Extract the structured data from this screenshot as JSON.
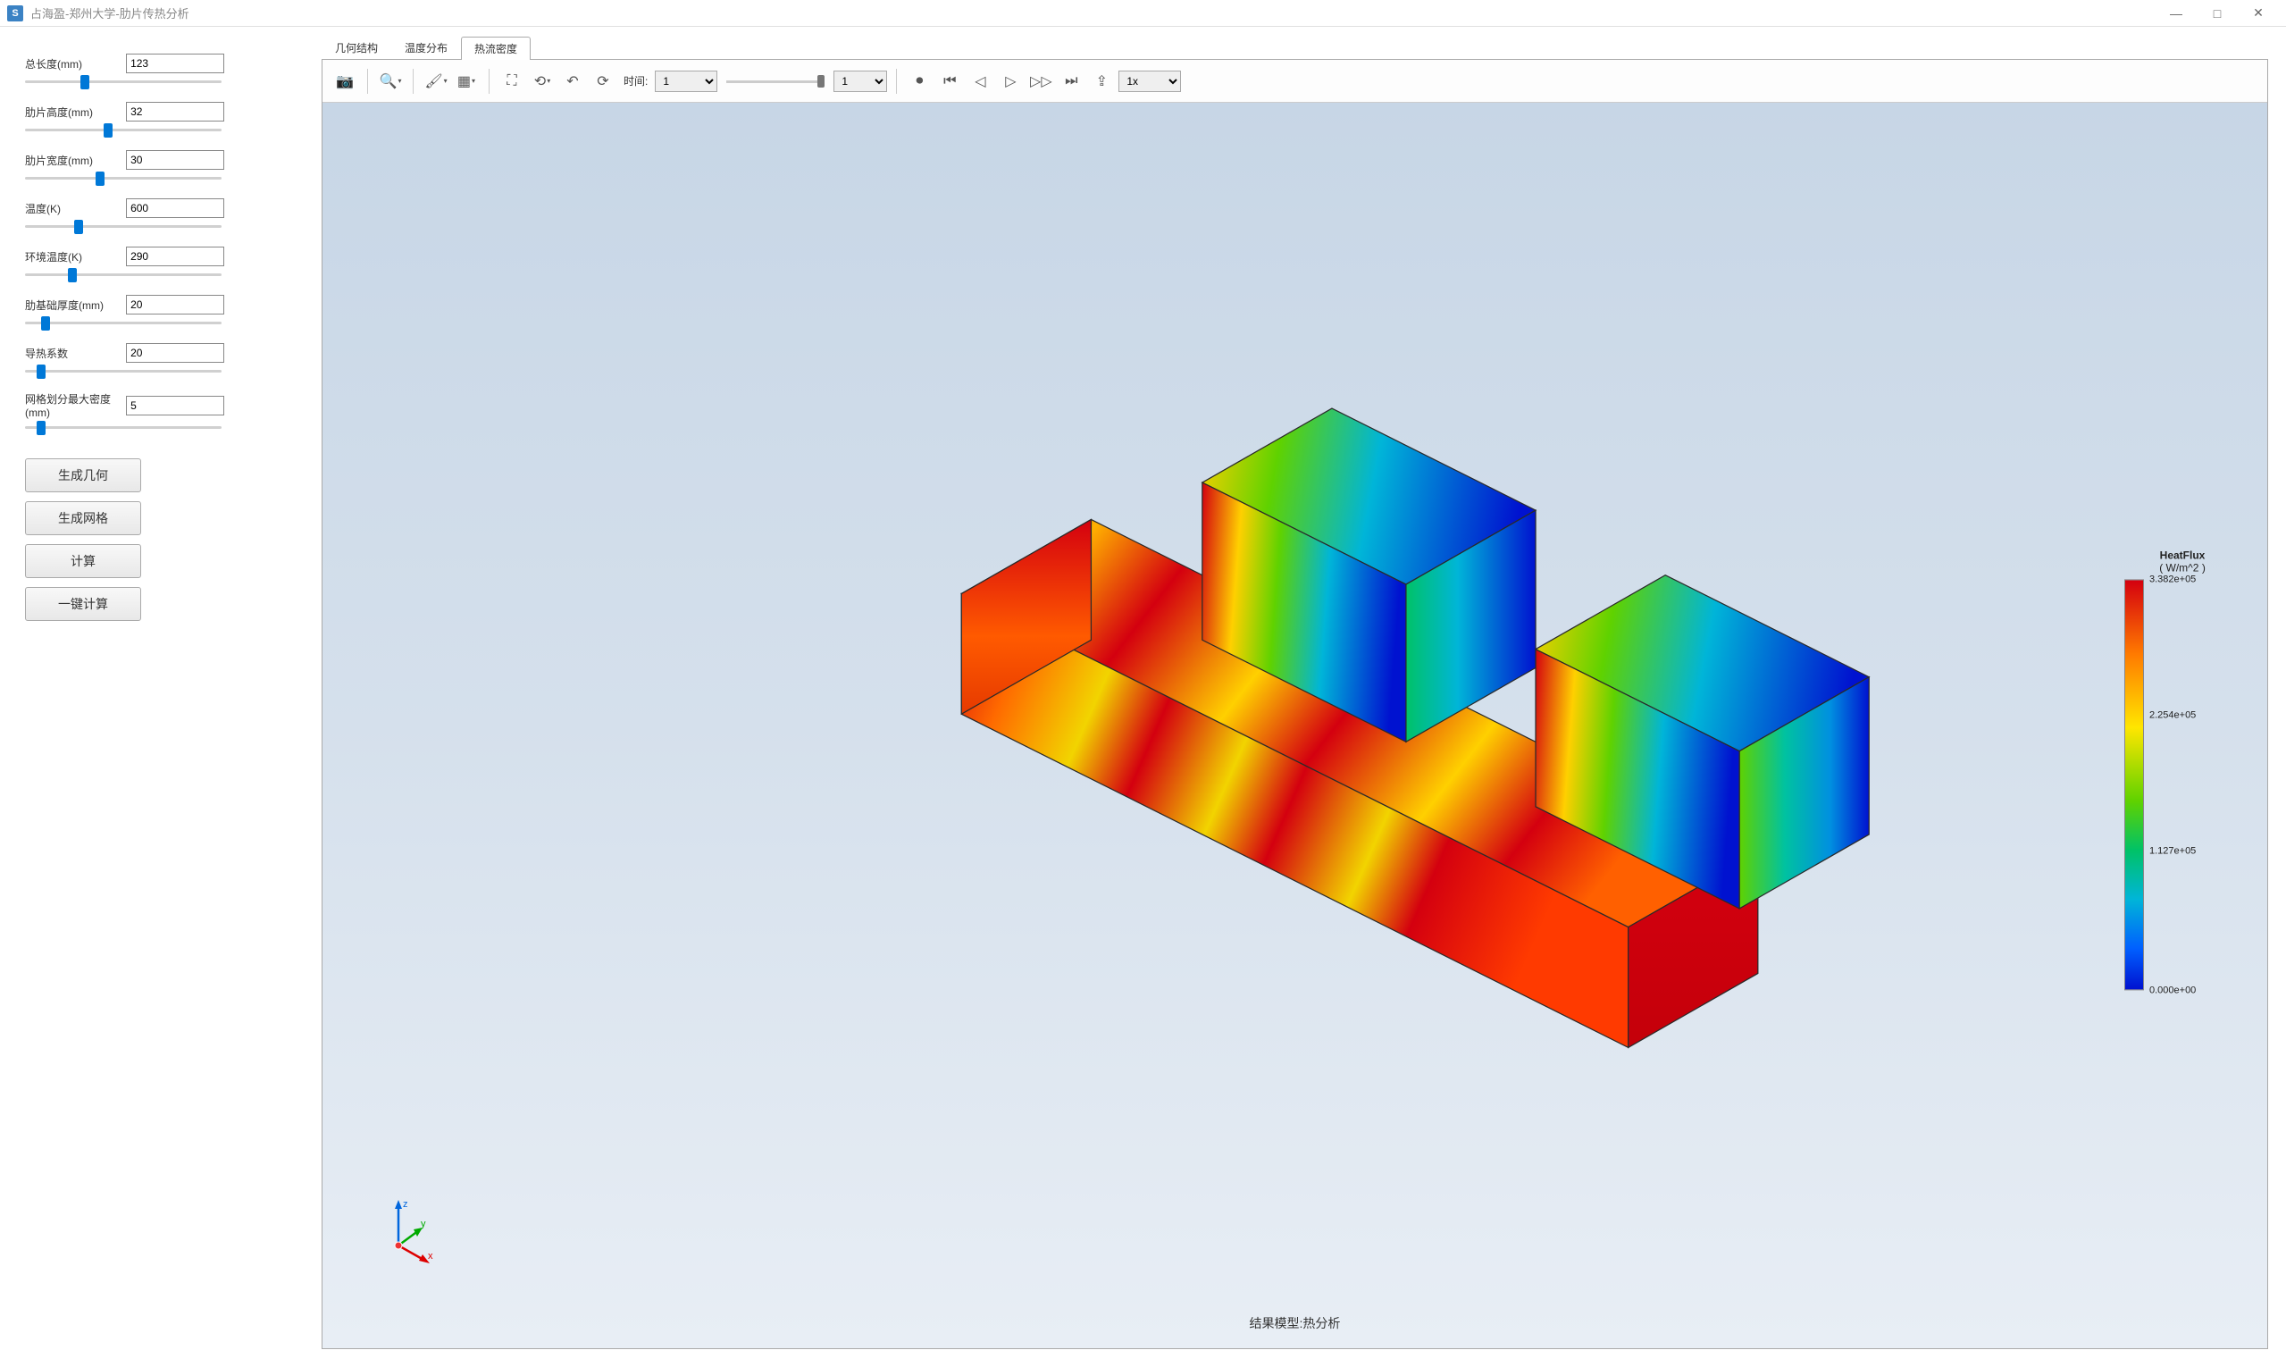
{
  "window": {
    "title": "占海盈-郑州大学-肋片传热分析",
    "min": "—",
    "max": "□",
    "close": "✕"
  },
  "sidebar": {
    "params": [
      {
        "label": "总长度(mm)",
        "value": "123",
        "thumb_pct": 28
      },
      {
        "label": "肋片高度(mm)",
        "value": "32",
        "thumb_pct": 40
      },
      {
        "label": "肋片宽度(mm)",
        "value": "30",
        "thumb_pct": 36
      },
      {
        "label": "温度(K)",
        "value": "600",
        "thumb_pct": 25
      },
      {
        "label": "环境温度(K)",
        "value": "290",
        "thumb_pct": 22
      },
      {
        "label": "肋基础厚度(mm)",
        "value": "20",
        "thumb_pct": 8
      },
      {
        "label": "导热系数",
        "value": "20",
        "thumb_pct": 6
      },
      {
        "label": "网格划分最大密度(mm)",
        "value": "5",
        "thumb_pct": 6
      }
    ],
    "buttons": [
      {
        "label": "生成几何",
        "name": "generate-geometry-button"
      },
      {
        "label": "生成网格",
        "name": "generate-mesh-button"
      },
      {
        "label": "计算",
        "name": "compute-button"
      },
      {
        "label": "一键计算",
        "name": "onekey-compute-button"
      }
    ]
  },
  "tabs": [
    {
      "label": "几何结构",
      "name": "tab-geometry",
      "active": false
    },
    {
      "label": "温度分布",
      "name": "tab-temperature",
      "active": false
    },
    {
      "label": "热流密度",
      "name": "tab-heatflux",
      "active": true
    }
  ],
  "toolbar": {
    "time_label": "时间:",
    "time_value": "1",
    "step_value": "1",
    "speed_value": "1x",
    "icons": {
      "camera": "📷",
      "zoom": "🔍",
      "highlight": "🖌",
      "cube": "▦",
      "fit": "⛶",
      "rotate": "⟲",
      "undo": "↶",
      "refresh": "⟳",
      "rec": "⏺",
      "first": "⏮",
      "prev": "◁",
      "play": "▷",
      "next": "▷▷",
      "last": "⏭",
      "export": "⇪"
    }
  },
  "viewer": {
    "background_top": "#c7d6e6",
    "background_bot": "#e8eef5",
    "caption": "结果模型:热分析",
    "triad": {
      "x": "x",
      "y": "y",
      "z": "z",
      "x_color": "#d00",
      "y_color": "#0a0",
      "z_color": "#06d"
    },
    "model": {
      "edge_color": "#2a2a2a",
      "gradient_stops": [
        {
          "o": "0%",
          "c": "#d4000f"
        },
        {
          "o": "18%",
          "c": "#ff7a00"
        },
        {
          "o": "40%",
          "c": "#ffe600"
        },
        {
          "o": "58%",
          "c": "#5fd200"
        },
        {
          "o": "72%",
          "c": "#00c267"
        },
        {
          "o": "85%",
          "c": "#00b5d8"
        },
        {
          "o": "100%",
          "c": "#0012d0"
        }
      ]
    }
  },
  "legend": {
    "title": "HeatFlux",
    "unit": "( W/m^2 )",
    "ticks": [
      {
        "pct": 0,
        "label": "3.382e+05"
      },
      {
        "pct": 33,
        "label": "2.254e+05"
      },
      {
        "pct": 66,
        "label": "1.127e+05"
      },
      {
        "pct": 100,
        "label": "0.000e+00"
      }
    ],
    "gradient": [
      "#d4000f",
      "#ff7a00",
      "#ffe600",
      "#5fd200",
      "#00c267",
      "#00b5d8",
      "#0060ff",
      "#0012d0"
    ]
  }
}
